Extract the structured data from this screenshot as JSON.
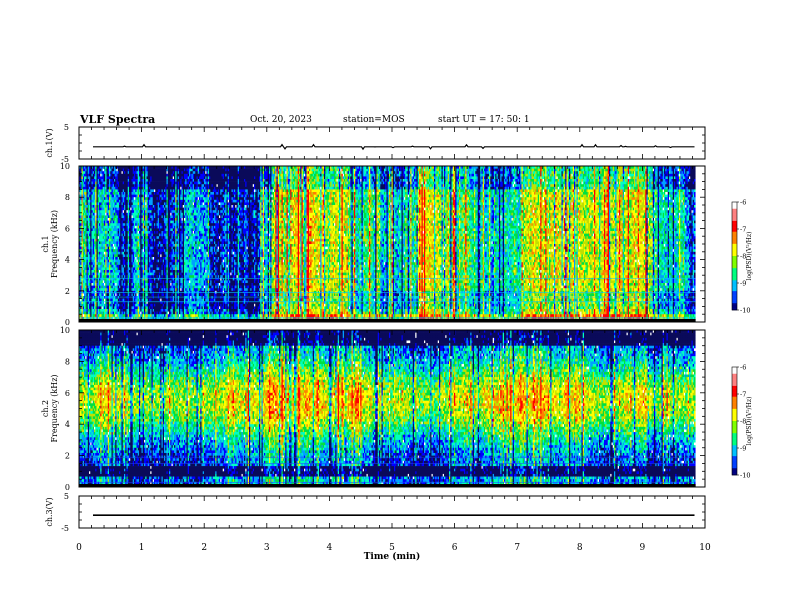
{
  "header": {
    "title": "VLF Spectra",
    "date": "Oct. 20, 2023",
    "station": "station=MOS",
    "start": "start  UT =    17: 50: 1"
  },
  "chart_data": [
    {
      "type": "line",
      "name": "ch1-waveform",
      "ylabel": "ch.1(V)",
      "ylim": [
        -5,
        5
      ],
      "yticks": [
        "5",
        "-5"
      ],
      "baseline_v": -1.2,
      "x_units": "min",
      "xlim": [
        0,
        10
      ]
    },
    {
      "type": "heatmap",
      "name": "ch1-spectrogram",
      "ylabel_line1": "ch.1",
      "ylabel_line2": "Frequency (kHz)",
      "ylim": [
        0,
        10
      ],
      "yticks": [
        "0",
        "2",
        "4",
        "6",
        "8",
        "10"
      ],
      "xlim": [
        0,
        10
      ],
      "data_end_min": 9.85,
      "colorbar": {
        "range": [
          -10,
          -6
        ],
        "ticks": [
          "-6",
          "-7",
          "-8",
          "-9",
          "-10"
        ],
        "label": "log(PSD)(V²/Hz)"
      }
    },
    {
      "type": "heatmap",
      "name": "ch2-spectrogram",
      "ylabel_line1": "ch.2",
      "ylabel_line2": "Frequency (kHz)",
      "ylim": [
        0,
        10
      ],
      "yticks": [
        "0",
        "2",
        "4",
        "6",
        "8",
        "10"
      ],
      "xlim": [
        0,
        10
      ],
      "data_end_min": 9.85,
      "colorbar": {
        "range": [
          -10,
          -6
        ],
        "ticks": [
          "-6",
          "-7",
          "-8",
          "-9",
          "-10"
        ],
        "label": "log(PSD)(V²/Hz)"
      }
    },
    {
      "type": "line",
      "name": "ch3-waveform",
      "ylabel": "ch.3(V)",
      "ylim": [
        -5,
        5
      ],
      "yticks": [
        "5",
        "-5"
      ],
      "baseline_v": -1.0,
      "xlim": [
        0,
        10
      ],
      "xlabel": "Time  (min)",
      "xticks": [
        "0",
        "1",
        "2",
        "3",
        "4",
        "5",
        "6",
        "7",
        "8",
        "9",
        "10"
      ]
    }
  ],
  "colors": {
    "palette": [
      "#0a0a5a",
      "#0000ff",
      "#00a0ff",
      "#00ffc0",
      "#00e040",
      "#c0e000",
      "#ffff00",
      "#ff8000",
      "#ff0000",
      "#ffffff"
    ]
  }
}
